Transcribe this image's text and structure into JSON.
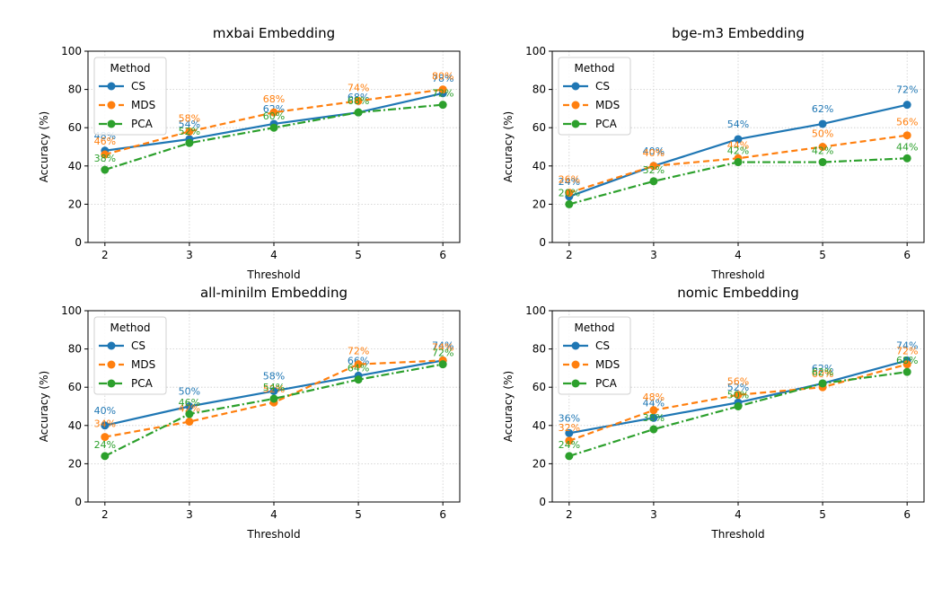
{
  "colors": {
    "CS": "#1f77b4",
    "MDS": "#ff7f0e",
    "PCA": "#2ca02c",
    "grid": "#cccccc"
  },
  "legend_title": "Method",
  "chart_data": [
    {
      "type": "line",
      "title": "mxbai Embedding",
      "xlabel": "Threshold",
      "ylabel": "Accuracy (%)",
      "x": [
        2,
        3,
        4,
        5,
        6
      ],
      "xlim": [
        1.8,
        6.2
      ],
      "ylim": [
        0,
        100
      ],
      "yticks": [
        0,
        20,
        40,
        60,
        80,
        100
      ],
      "grid": true,
      "legend": "top-left",
      "series": [
        {
          "name": "CS",
          "values": [
            48,
            54,
            62,
            68,
            78
          ],
          "labels": [
            "48%",
            "54%",
            "62%",
            "68%",
            "78%"
          ]
        },
        {
          "name": "MDS",
          "values": [
            46,
            58,
            68,
            74,
            80
          ],
          "labels": [
            "46%",
            "58%",
            "68%",
            "74%",
            "80%"
          ]
        },
        {
          "name": "PCA",
          "values": [
            38,
            52,
            60,
            68,
            72
          ],
          "labels": [
            "38%",
            "52%",
            "60%",
            "68%",
            "72%"
          ]
        }
      ]
    },
    {
      "type": "line",
      "title": "bge-m3 Embedding",
      "xlabel": "Threshold",
      "ylabel": "Accuracy (%)",
      "x": [
        2,
        3,
        4,
        5,
        6
      ],
      "xlim": [
        1.8,
        6.2
      ],
      "ylim": [
        0,
        100
      ],
      "yticks": [
        0,
        20,
        40,
        60,
        80,
        100
      ],
      "grid": true,
      "legend": "top-left",
      "series": [
        {
          "name": "CS",
          "values": [
            24,
            40,
            54,
            62,
            72
          ],
          "labels": [
            "24%",
            "40%",
            "54%",
            "62%",
            "72%"
          ]
        },
        {
          "name": "MDS",
          "values": [
            26,
            40,
            44,
            50,
            56
          ],
          "labels": [
            "26%",
            "40%",
            "44%",
            "50%",
            "56%"
          ]
        },
        {
          "name": "PCA",
          "values": [
            20,
            32,
            42,
            42,
            44
          ],
          "labels": [
            "20%",
            "32%",
            "42%",
            "42%",
            "44%"
          ]
        }
      ]
    },
    {
      "type": "line",
      "title": "all-minilm Embedding",
      "xlabel": "Threshold",
      "ylabel": "Accuracy (%)",
      "x": [
        2,
        3,
        4,
        5,
        6
      ],
      "xlim": [
        1.8,
        6.2
      ],
      "ylim": [
        0,
        100
      ],
      "yticks": [
        0,
        20,
        40,
        60,
        80,
        100
      ],
      "grid": true,
      "legend": "top-left",
      "series": [
        {
          "name": "CS",
          "values": [
            40,
            50,
            58,
            66,
            74
          ],
          "labels": [
            "40%",
            "50%",
            "58%",
            "66%",
            "74%"
          ]
        },
        {
          "name": "MDS",
          "values": [
            34,
            42,
            52,
            72,
            74
          ],
          "labels": [
            "34%",
            "42%",
            "52%",
            "72%",
            "74%"
          ]
        },
        {
          "name": "PCA",
          "values": [
            24,
            46,
            54,
            64,
            72
          ],
          "labels": [
            "24%",
            "46%",
            "54%",
            "64%",
            "72%"
          ]
        }
      ]
    },
    {
      "type": "line",
      "title": "nomic Embedding",
      "xlabel": "Threshold",
      "ylabel": "Accuracy (%)",
      "x": [
        2,
        3,
        4,
        5,
        6
      ],
      "xlim": [
        1.8,
        6.2
      ],
      "ylim": [
        0,
        100
      ],
      "yticks": [
        0,
        20,
        40,
        60,
        80,
        100
      ],
      "grid": true,
      "legend": "top-left",
      "series": [
        {
          "name": "CS",
          "values": [
            36,
            44,
            52,
            62,
            74
          ],
          "labels": [
            "36%",
            "44%",
            "52%",
            "62%",
            "74%"
          ]
        },
        {
          "name": "MDS",
          "values": [
            32,
            48,
            56,
            60,
            72
          ],
          "labels": [
            "32%",
            "48%",
            "56%",
            "60%",
            "72%"
          ]
        },
        {
          "name": "PCA",
          "values": [
            24,
            38,
            50,
            62,
            68
          ],
          "labels": [
            "24%",
            "38%",
            "50%",
            "62%",
            "68%"
          ]
        }
      ]
    }
  ]
}
